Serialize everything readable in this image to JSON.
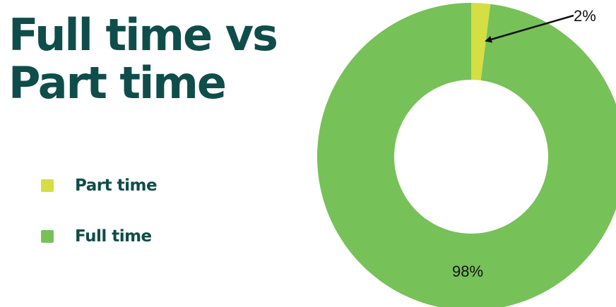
{
  "title_lines": [
    "Full time vs",
    "Part time"
  ],
  "legend": [
    {
      "label": "Part time",
      "color": "#d4df43"
    },
    {
      "label": "Full time",
      "color": "#77c159"
    }
  ],
  "chart_data": {
    "type": "pie",
    "donut": true,
    "title": "Full time vs Part time",
    "categories": [
      "Part time",
      "Full time"
    ],
    "values": [
      2,
      98
    ],
    "colors": [
      "#d4df43",
      "#77c159"
    ],
    "data_labels": [
      "2%",
      "98%"
    ],
    "legend_position": "left"
  }
}
